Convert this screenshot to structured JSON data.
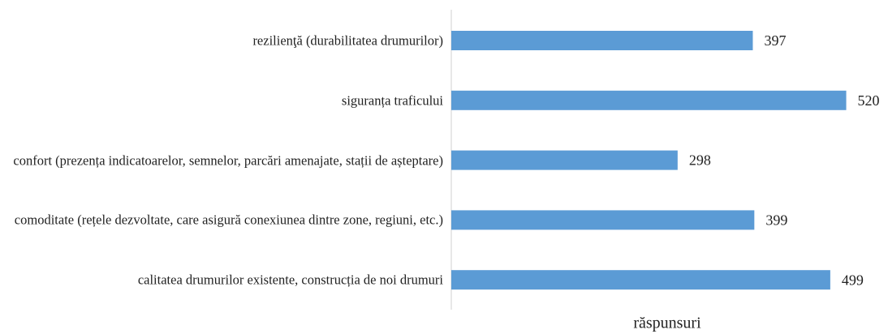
{
  "chart_data": {
    "type": "barh",
    "categories": [
      "rezilienţă (durabilitatea drumurilor)",
      "siguranța traficului",
      "confort (prezența indicatoarelor, semnelor, parcări amenajate, stații de așteptare)",
      "comoditate (rețele dezvoltate, care asigură conexiunea dintre zone, regiuni, etc.)",
      "calitatea drumurilor existente, construcția de noi drumuri"
    ],
    "values": [
      397,
      520,
      298,
      399,
      499
    ],
    "color": "#5b9bd5",
    "xlabel": "răspunsuri",
    "xlim": [
      0,
      575
    ]
  }
}
